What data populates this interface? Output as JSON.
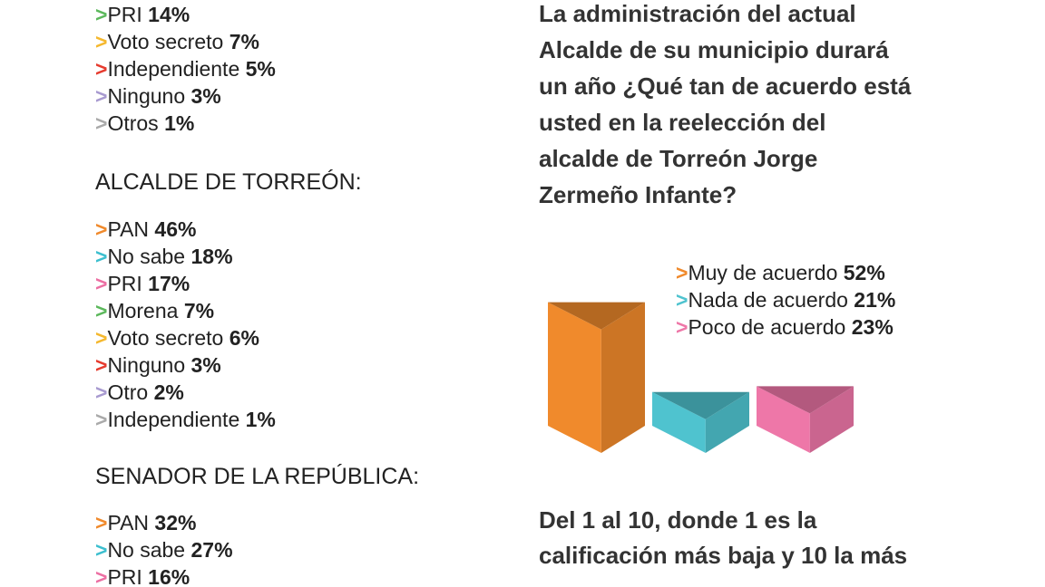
{
  "sections": [
    {
      "items": [
        {
          "label": "PRI",
          "value": "14%",
          "color": "#5cb85c"
        },
        {
          "label": "Voto secreto",
          "value": "7%",
          "color": "#f5b82e"
        },
        {
          "label": "Independiente",
          "value": "5%",
          "color": "#e63b2e"
        },
        {
          "label": "Ninguno",
          "value": "3%",
          "color": "#a89ad0"
        },
        {
          "label": "Otros",
          "value": "1%",
          "color": "#aaaaaa"
        }
      ]
    },
    {
      "title": "ALCALDE DE TORREÓN:",
      "items": [
        {
          "label": "PAN",
          "value": "46%",
          "color": "#f08a2c"
        },
        {
          "label": "No sabe",
          "value": "18%",
          "color": "#3dbfcf"
        },
        {
          "label": "PRI",
          "value": "17%",
          "color": "#ec6fa3"
        },
        {
          "label": "Morena",
          "value": "7%",
          "color": "#5cb85c"
        },
        {
          "label": "Voto secreto",
          "value": "6%",
          "color": "#f5b82e"
        },
        {
          "label": "Ninguno",
          "value": "3%",
          "color": "#e63b2e"
        },
        {
          "label": "Otro",
          "value": "2%",
          "color": "#a89ad0"
        },
        {
          "label": "Independiente",
          "value": "1%",
          "color": "#aaaaaa"
        }
      ]
    },
    {
      "title": "SENADOR DE LA REPÚBLICA:",
      "items": [
        {
          "label": "PAN",
          "value": "32%",
          "color": "#f08a2c"
        },
        {
          "label": "No sabe",
          "value": "27%",
          "color": "#3dbfcf"
        },
        {
          "label": "PRI",
          "value": "16%",
          "color": "#ec6fa3"
        }
      ]
    }
  ],
  "question": [
    "La administración del actual",
    "Alcalde de su municipio durará",
    "un año ¿Qué tan de acuerdo está",
    "usted en la reelección del",
    "alcalde de Torreón Jorge",
    "Zermeño Infante?"
  ],
  "chart_data": {
    "type": "bar",
    "categories": [
      "Muy de acuerdo",
      "Nada de acuerdo",
      "Poco de acuerdo"
    ],
    "values": [
      52,
      21,
      23
    ],
    "value_labels": [
      "52%",
      "21%",
      "23%"
    ],
    "colors": [
      "#f08a2c",
      "#4fc3cf",
      "#ee77a8"
    ]
  },
  "next_question": [
    "Del 1 al 10, donde 1 es la",
    "calificación más baja y 10 la más"
  ]
}
